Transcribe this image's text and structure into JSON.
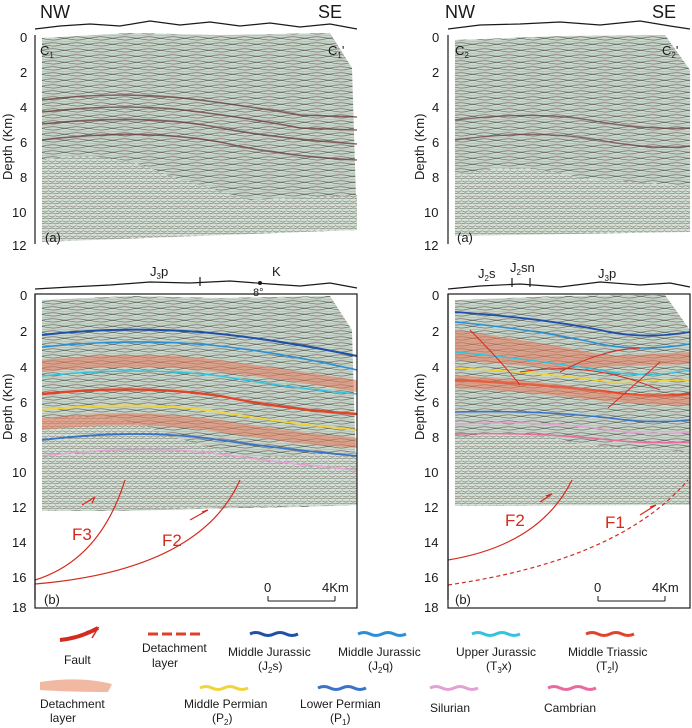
{
  "panels": {
    "top_left": {
      "nw": "NW",
      "se": "SE",
      "line_start": "C",
      "line_start_sub": "1",
      "line_end": "C",
      "line_end_sub": "1",
      "line_end_prime": "'",
      "panel_label": "(a)"
    },
    "top_right": {
      "nw": "NW",
      "se": "SE",
      "line_start": "C",
      "line_start_sub": "2",
      "line_end": "C",
      "line_end_sub": "2",
      "line_end_prime": "'",
      "panel_label": "(a)"
    },
    "bottom_left": {
      "panel_label": "(b)",
      "surface_labels": {
        "j3p_main": "J",
        "j3p_sub": "3",
        "j3p_tail": "p",
        "k": "K",
        "dip": "8°"
      },
      "faults": [
        "F3",
        "F2"
      ],
      "scale": {
        "start": "0",
        "end": "4Km"
      }
    },
    "bottom_right": {
      "panel_label": "(b)",
      "surface_labels": {
        "j2s_main": "J",
        "j2s_sub": "2",
        "j2s_tail": "s",
        "j2sn_main": "J",
        "j2sn_sub": "2",
        "j2sn_tail": "sn",
        "j3p_main": "J",
        "j3p_sub": "3",
        "j3p_tail": "p"
      },
      "faults": [
        "F2",
        "F1"
      ],
      "scale": {
        "start": "0",
        "end": "4Km"
      }
    }
  },
  "axis": {
    "title": "Depth (Km)",
    "top_ticks": [
      "0",
      "2",
      "4",
      "6",
      "8",
      "10",
      "12"
    ],
    "bottom_ticks": [
      "0",
      "2",
      "4",
      "6",
      "8",
      "10",
      "12",
      "14",
      "16",
      "18"
    ]
  },
  "legend": {
    "fault": "Fault",
    "detachment_line_1": "Detachment",
    "detachment_line_2": "layer",
    "mid_jurassic_s": "Middle Jurassic",
    "mid_jurassic_s_code": "J",
    "mid_jurassic_s_sub": "2",
    "mid_jurassic_s_tail": "s",
    "mid_jurassic_q": "Middle Jurassic",
    "mid_jurassic_q_code": "J",
    "mid_jurassic_q_sub": "2",
    "mid_jurassic_q_tail": "q",
    "up_jurassic": "Upper Jurassic",
    "up_jurassic_code": "T",
    "up_jurassic_sub": "3",
    "up_jurassic_tail": "x",
    "mid_triassic": "Middle Triassic",
    "mid_triassic_code": "T",
    "mid_triassic_sub": "2",
    "mid_triassic_tail": "l",
    "det_layer_line_1": "Detachment",
    "det_layer_line_2": "layer",
    "mid_permian": "Middle Permian",
    "mid_permian_code": "P",
    "mid_permian_sub": "2",
    "low_permian": "Lower Permian",
    "low_permian_code": "P",
    "low_permian_sub": "1",
    "silurian": "Silurian",
    "cambrian": "Cambrian",
    "colors": {
      "fault": "#d42b1e",
      "detachment": "#e0402a",
      "mid_jurassic_s": "#1f4fa8",
      "mid_jurassic_q": "#2a8fd6",
      "up_jurassic": "#33c3e0",
      "mid_triassic": "#e0442a",
      "det_area": "#f2b9a2",
      "mid_permian": "#f0d53a",
      "low_permian": "#3a73c8",
      "silurian": "#e4a2d4",
      "cambrian": "#e86aa0"
    }
  }
}
